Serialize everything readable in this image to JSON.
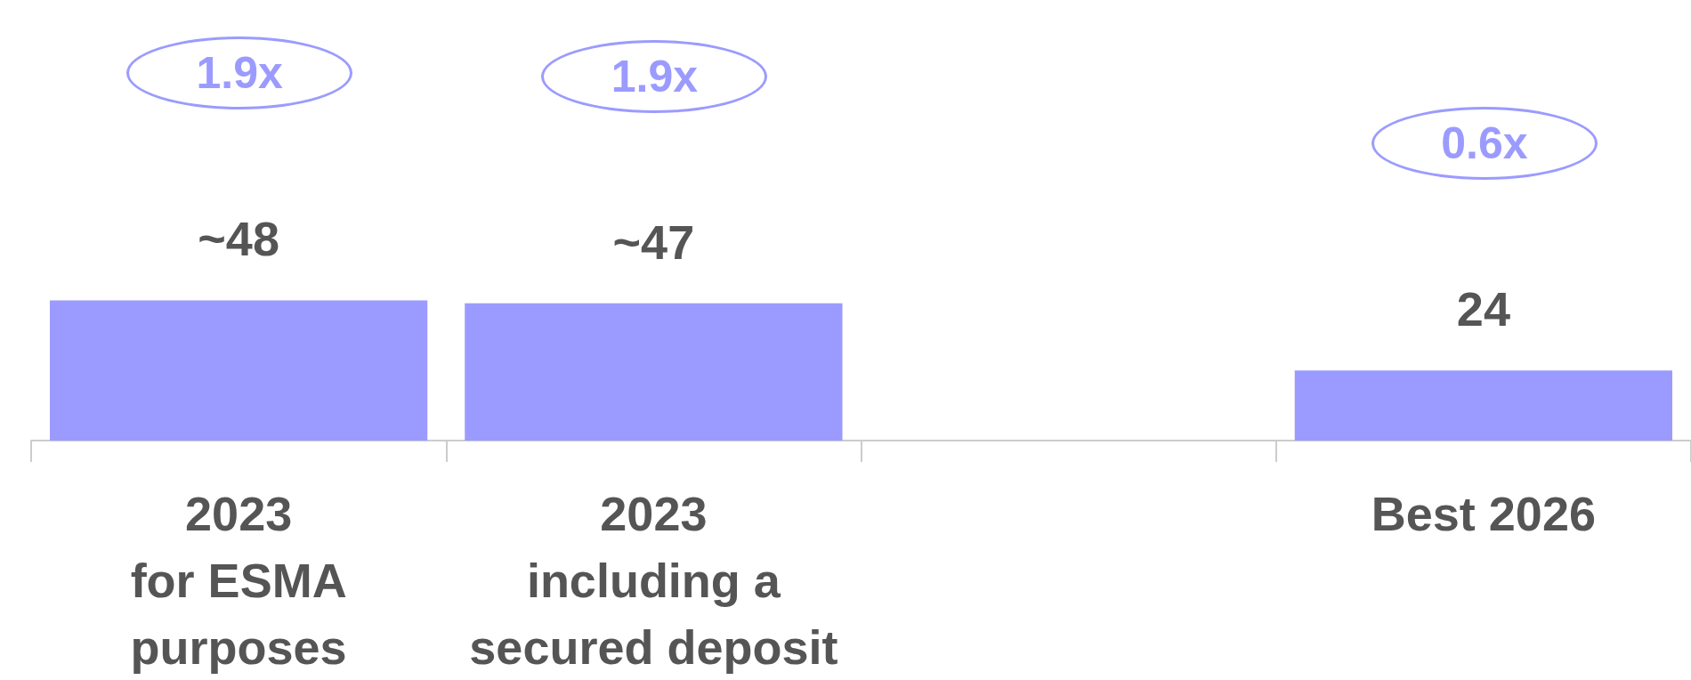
{
  "chart_data": {
    "type": "bar",
    "categories": [
      "2023\nfor ESMA\npurposes",
      "2023\nincluding a\nsecured deposit",
      null,
      "Best 2026"
    ],
    "values": [
      48,
      47,
      null,
      24
    ],
    "value_labels": [
      "~48",
      "~47",
      null,
      "24"
    ],
    "color": "#9b9bff",
    "annotations": [
      "1.9x",
      "1.9x",
      "0.6x"
    ]
  }
}
